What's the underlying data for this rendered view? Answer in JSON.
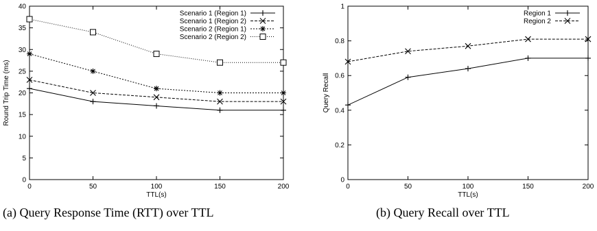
{
  "chart_data": [
    {
      "type": "line",
      "caption": "(a) Query Response Time (RTT) over TTL",
      "xlabel": "TTL(s)",
      "ylabel": "Round Trip Time (ms)",
      "xlim": [
        0,
        200
      ],
      "ylim": [
        0,
        40
      ],
      "xticks": [
        "0",
        "50",
        "100",
        "150",
        "200"
      ],
      "yticks": [
        "0",
        "5",
        "10",
        "15",
        "20",
        "25",
        "30",
        "35",
        "40"
      ],
      "grid": false,
      "legend_position": "top-right",
      "x": [
        0,
        50,
        100,
        150,
        200
      ],
      "series": [
        {
          "name": "Scenario 1 (Region 1)",
          "marker": "plus",
          "dash": "solid",
          "values": [
            21,
            18,
            17,
            16,
            16
          ]
        },
        {
          "name": "Scenario 1 (Region 2)",
          "marker": "cross",
          "dash": "dashed",
          "values": [
            23,
            20,
            19,
            18,
            18
          ]
        },
        {
          "name": "Scenario 2 (Region 1)",
          "marker": "star",
          "dash": "dotted",
          "values": [
            29,
            25,
            21,
            20,
            20
          ]
        },
        {
          "name": "Scenario 2 (Region 2)",
          "marker": "square",
          "dash": "dotted-fine",
          "values": [
            37,
            34,
            29,
            27,
            27
          ]
        }
      ]
    },
    {
      "type": "line",
      "caption": "(b) Query Recall over TTL",
      "xlabel": "TTL(s)",
      "ylabel": "Query Recall",
      "xlim": [
        0,
        200
      ],
      "ylim": [
        0,
        1
      ],
      "xticks": [
        "0",
        "50",
        "100",
        "150",
        "200"
      ],
      "yticks": [
        "0",
        "0.2",
        "0.4",
        "0.6",
        "0.8",
        "1"
      ],
      "grid": false,
      "legend_position": "top-right",
      "x": [
        0,
        50,
        100,
        150,
        200
      ],
      "series": [
        {
          "name": "Region 1",
          "marker": "plus",
          "dash": "solid",
          "values": [
            0.43,
            0.59,
            0.64,
            0.7,
            0.7
          ]
        },
        {
          "name": "Region 2",
          "marker": "cross",
          "dash": "dashed",
          "values": [
            0.68,
            0.74,
            0.77,
            0.81,
            0.81
          ]
        }
      ]
    }
  ]
}
